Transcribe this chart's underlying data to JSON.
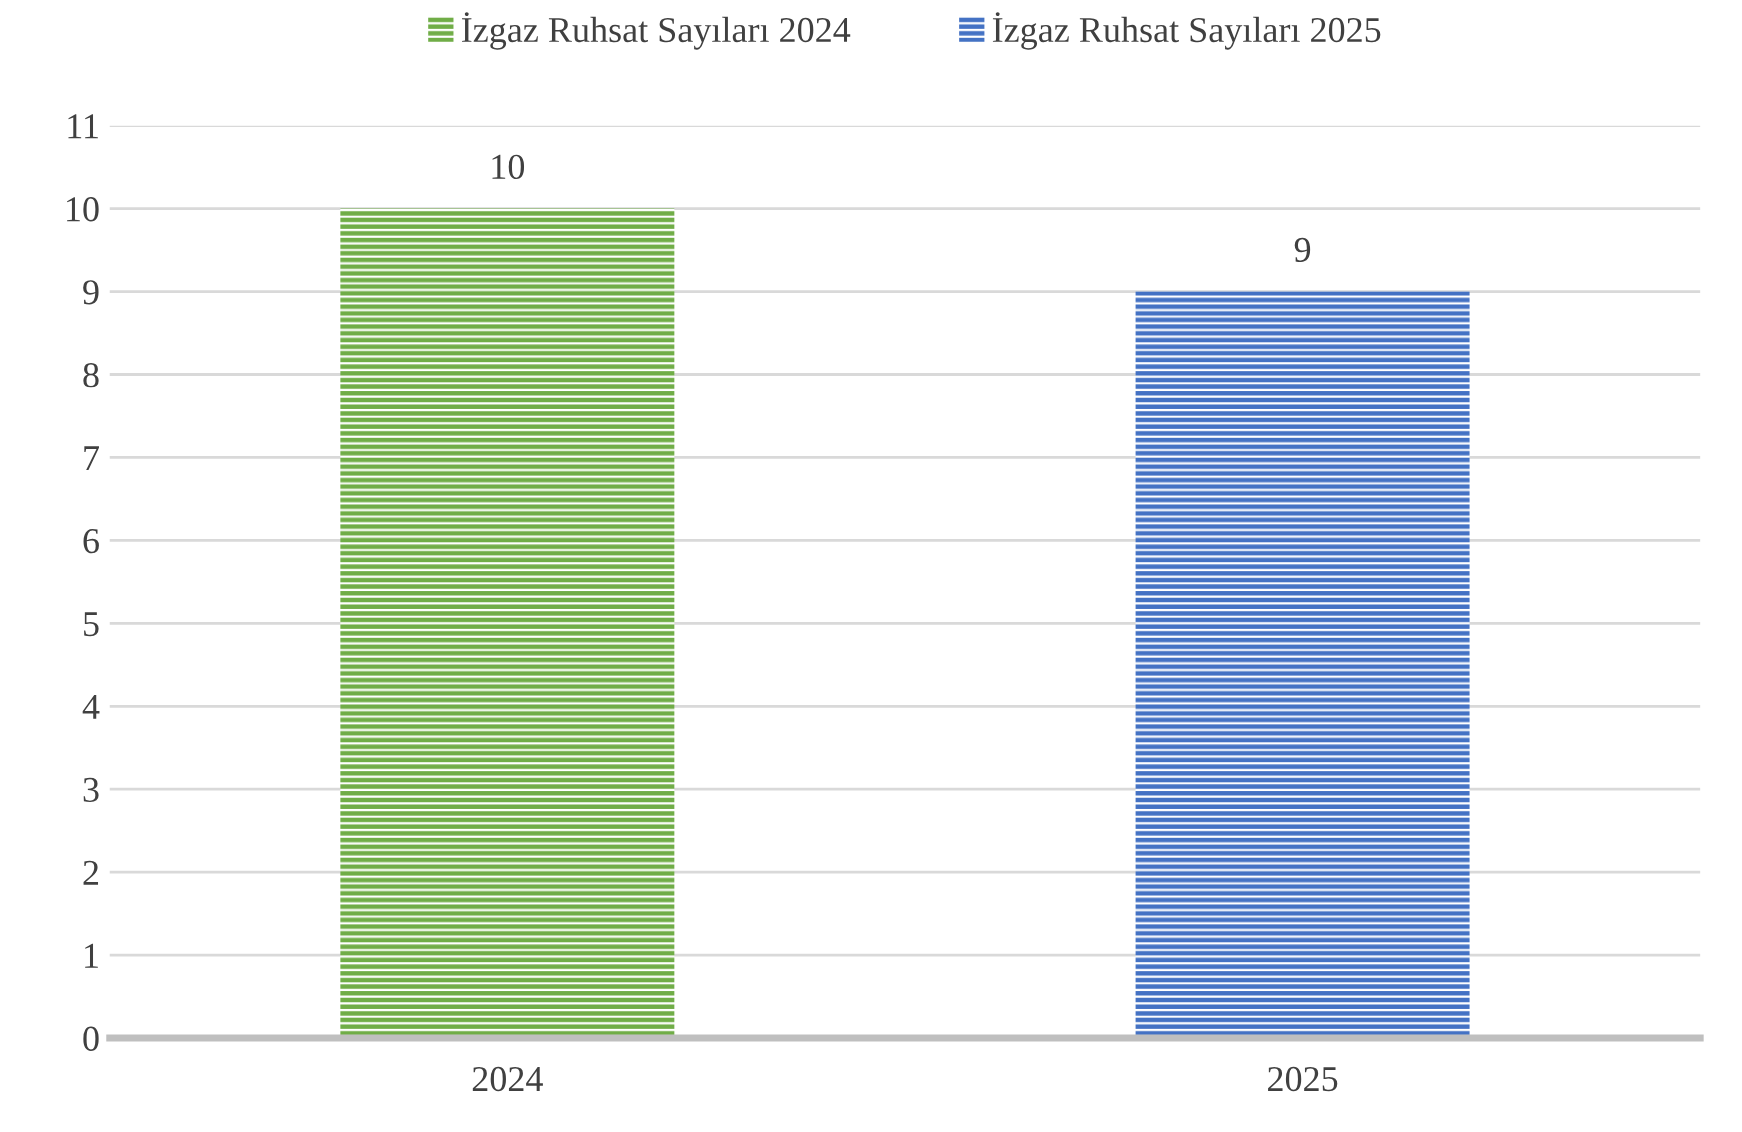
{
  "chart_data": {
    "type": "bar",
    "categories": [
      "2024",
      "2025"
    ],
    "series": [
      {
        "name": "İzgaz Ruhsat Sayıları 2024",
        "color": "#70ad47",
        "values": [
          10,
          null
        ]
      },
      {
        "name": "İzgaz Ruhsat Sayıları 2025",
        "color": "#4472c4",
        "values": [
          null,
          9
        ]
      }
    ],
    "ylim": [
      0,
      11
    ],
    "yticks": [
      0,
      1,
      2,
      3,
      4,
      5,
      6,
      7,
      8,
      9,
      10,
      11
    ],
    "grid": "y",
    "legend": "top",
    "data_labels": true
  }
}
